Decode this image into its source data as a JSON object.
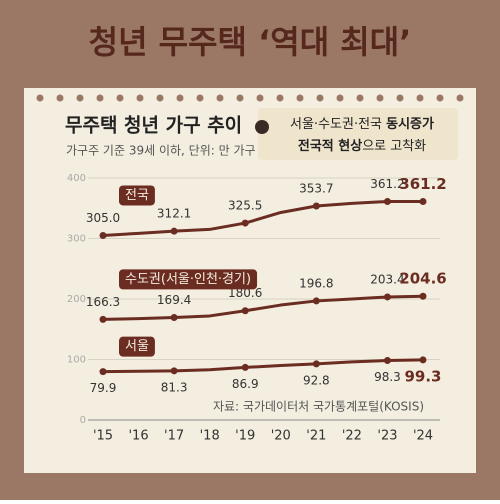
{
  "header": {
    "title": "청년 무주택 ‘역대 최대’"
  },
  "callout": {
    "lines": [
      [
        {
          "text": "서울·수도권·전국 ",
          "bold": false
        },
        {
          "text": "동시증가",
          "bold": true
        }
      ],
      [
        {
          "text": "전국적 현상",
          "bold": true
        },
        {
          "text": "으로 고착화",
          "bold": false
        }
      ]
    ]
  },
  "chart_data": {
    "type": "line",
    "title": "무주택 청년 가구 추이",
    "subtitle": "가구주 기준 39세 이하, 단위: 만 가구",
    "source": "자료: 국가데이터처 국가통계포털(KOSIS)",
    "categories": [
      "'15",
      "'16",
      "'17",
      "'18",
      "'19",
      "'20",
      "'21",
      "'22",
      "'23",
      "'24"
    ],
    "ylim": [
      0,
      400
    ],
    "yticks": [
      0,
      100,
      200,
      300,
      400
    ],
    "grid": true,
    "series": [
      {
        "name": "전국",
        "color": "#6b2c22",
        "values": [
          305.0,
          308.5,
          312.1,
          315,
          325.5,
          343,
          353.7,
          358,
          361.2,
          361.2
        ],
        "value_labels": [
          "305.0",
          null,
          "312.1",
          null,
          "325.5",
          null,
          "353.7",
          null,
          "361.2",
          "361.2"
        ]
      },
      {
        "name": "수도권(서울·인천·경기)",
        "color": "#6b2c22",
        "values": [
          166.3,
          167.5,
          169.4,
          172,
          180.6,
          190,
          196.8,
          200,
          203.4,
          204.6
        ],
        "value_labels": [
          "166.3",
          null,
          "169.4",
          null,
          "180.6",
          null,
          "196.8",
          null,
          "203.4",
          "204.6"
        ]
      },
      {
        "name": "서울",
        "color": "#6b2c22",
        "values": [
          79.9,
          80.5,
          81.3,
          83,
          86.9,
          90,
          92.8,
          96,
          98.3,
          99.3
        ],
        "value_labels": [
          "79.9",
          null,
          "81.3",
          null,
          "86.9",
          null,
          "92.8",
          null,
          "98.3",
          "99.3"
        ]
      }
    ]
  }
}
